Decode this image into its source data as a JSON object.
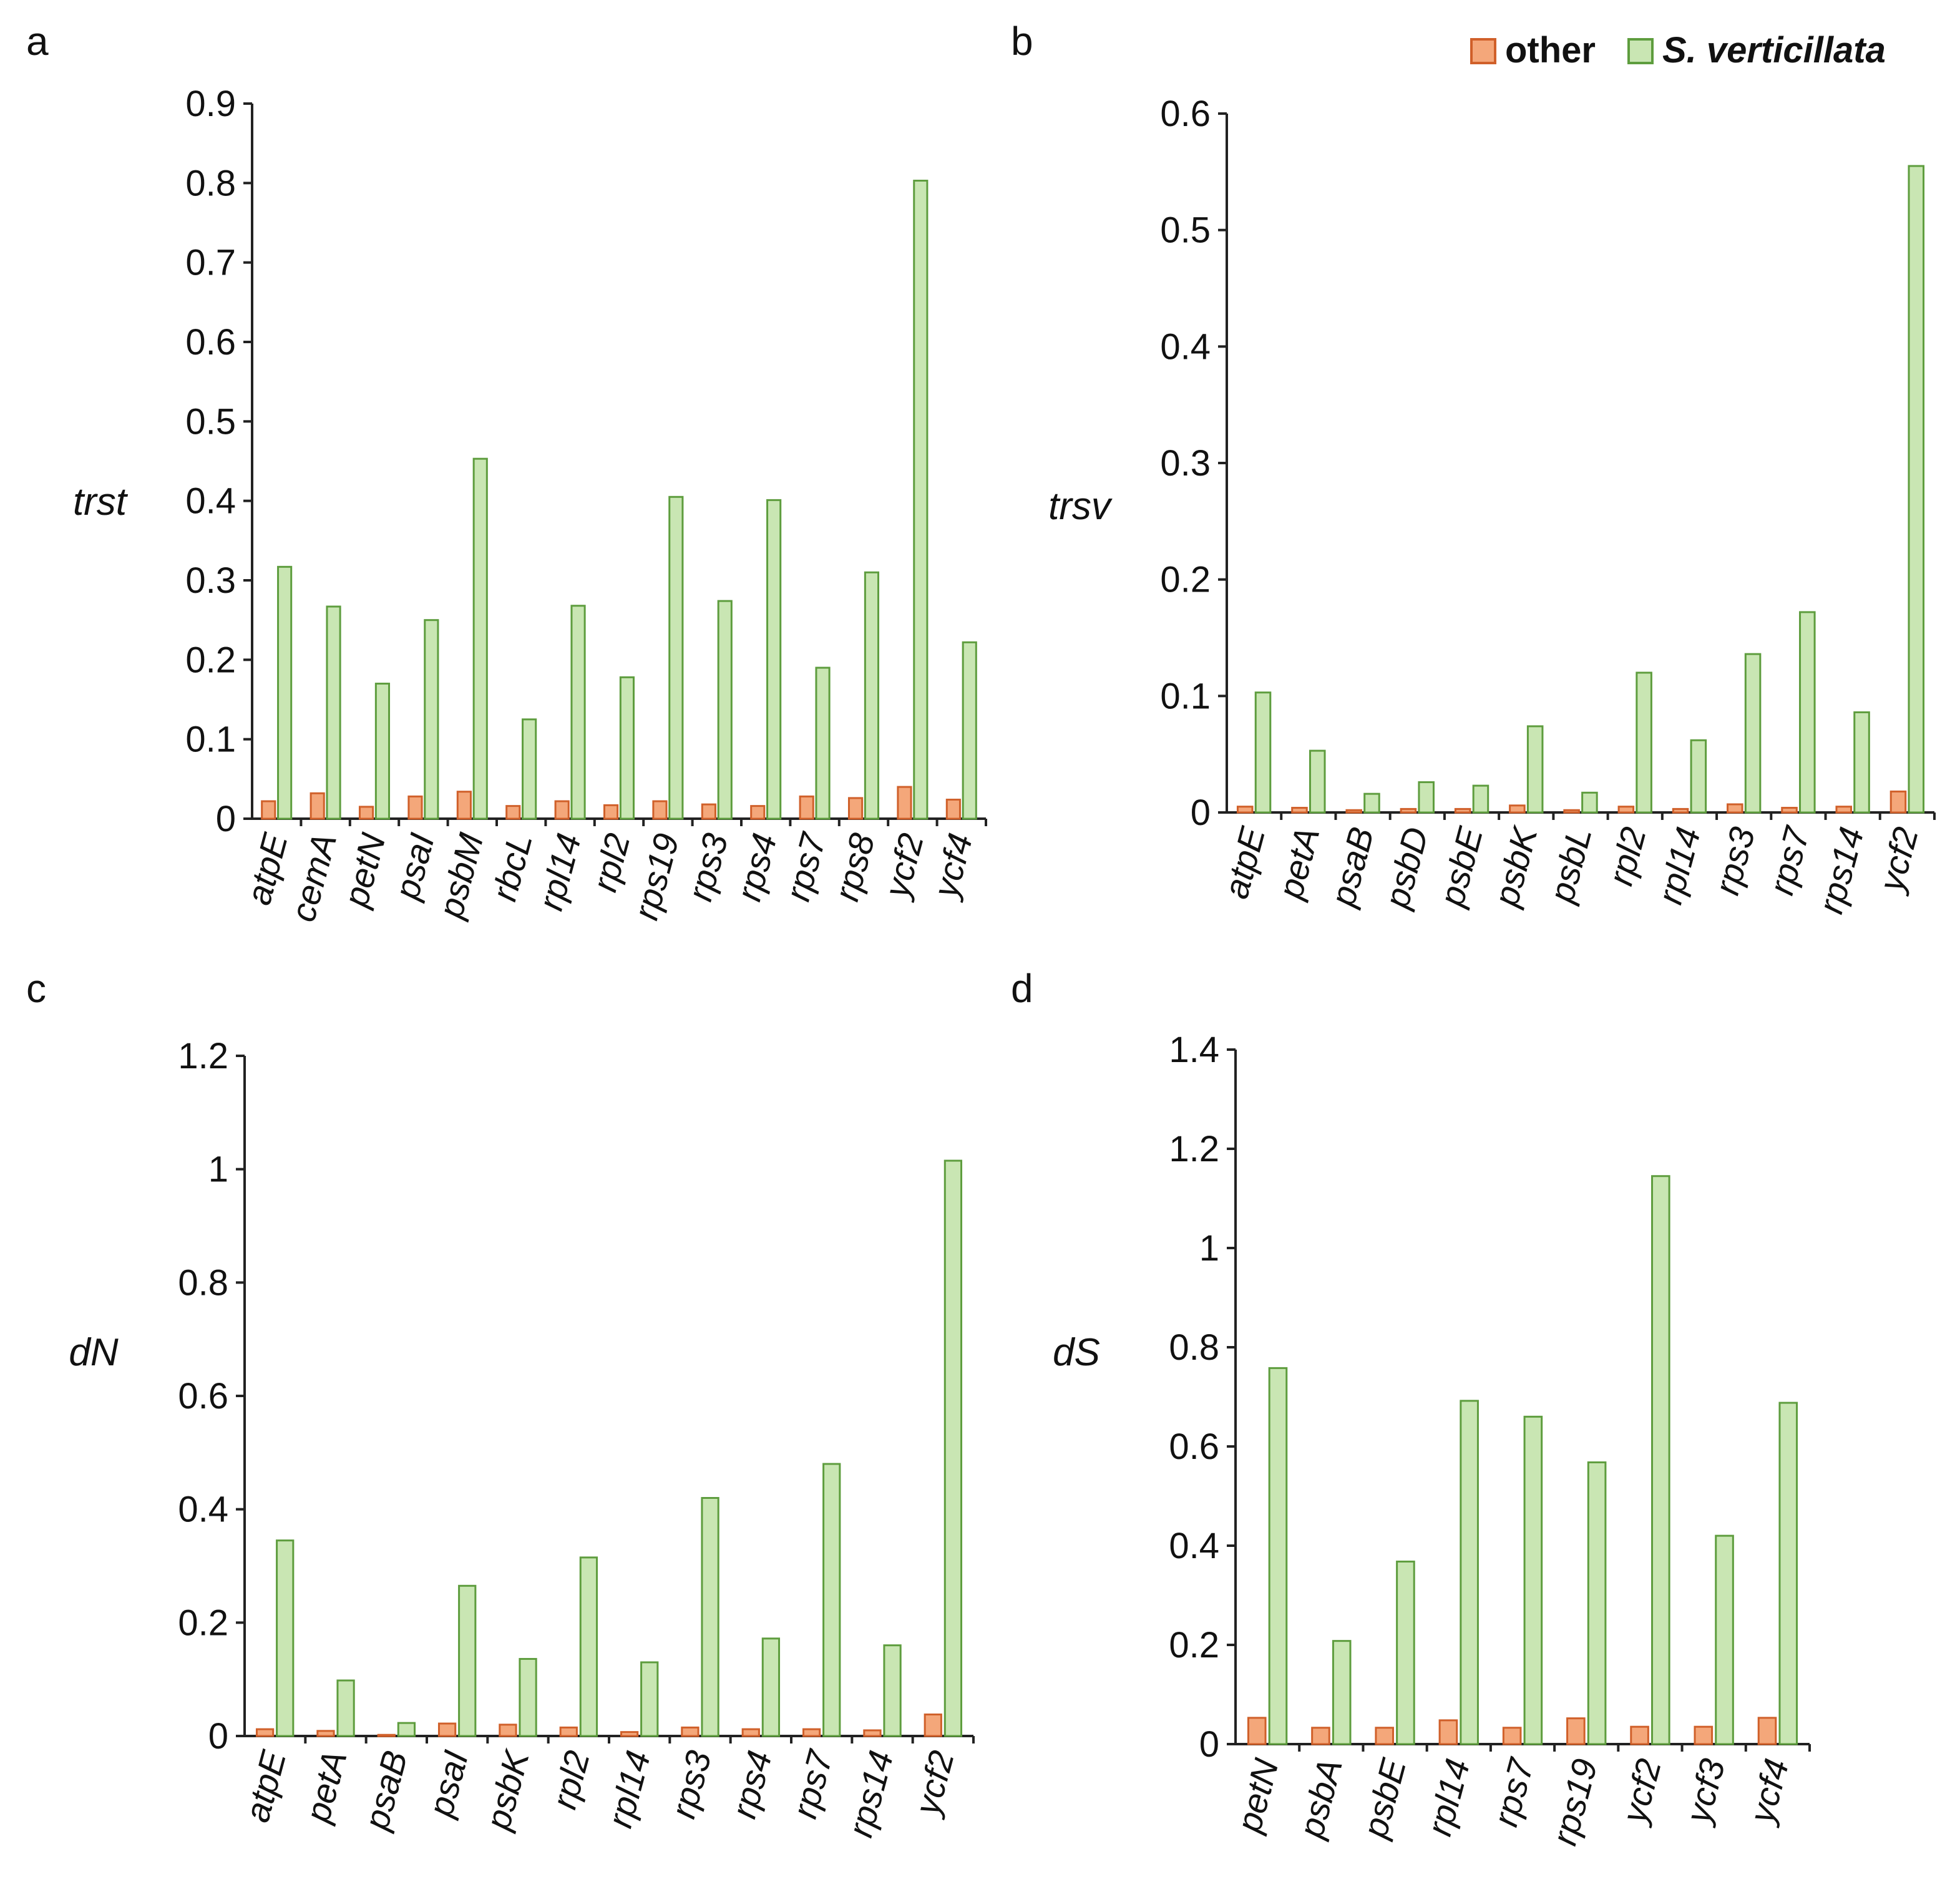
{
  "colors": {
    "other_fill": "#F4A77A",
    "other_stroke": "#D0602A",
    "sv_fill": "#C9E6B3",
    "sv_stroke": "#5E9D3E"
  },
  "legend": {
    "items": [
      {
        "label": "other",
        "italic": false
      },
      {
        "label": "S. verticillata",
        "italic": true
      }
    ]
  },
  "chart_data": [
    {
      "panel": "a",
      "type": "bar",
      "ylabel": "trst",
      "ylim": [
        0,
        0.9
      ],
      "yticks": [
        "0",
        "0.1",
        "0.2",
        "0.3",
        "0.4",
        "0.5",
        "0.6",
        "0.7",
        "0.8",
        "0.9"
      ],
      "categories": [
        "atpE",
        "cemA",
        "petN",
        "psaI",
        "psbM",
        "rbcL",
        "rpl14",
        "rpl2",
        "rps19",
        "rps3",
        "rps4",
        "rps7",
        "rps8",
        "ycf2",
        "ycf4"
      ],
      "series": [
        {
          "name": "other",
          "values": [
            0.022,
            0.032,
            0.015,
            0.028,
            0.034,
            0.016,
            0.022,
            0.017,
            0.022,
            0.018,
            0.016,
            0.028,
            0.026,
            0.04,
            0.024
          ]
        },
        {
          "name": "S. verticillata",
          "values": [
            0.317,
            0.267,
            0.17,
            0.25,
            0.453,
            0.125,
            0.268,
            0.178,
            0.405,
            0.274,
            0.401,
            0.19,
            0.31,
            0.803,
            0.222
          ]
        }
      ]
    },
    {
      "panel": "b",
      "type": "bar",
      "ylabel": "trsv",
      "ylim": [
        0,
        0.6
      ],
      "yticks": [
        "0",
        "0.1",
        "0.2",
        "0.3",
        "0.4",
        "0.5",
        "0.6"
      ],
      "categories": [
        "atpE",
        "petA",
        "psaB",
        "psbD",
        "psbE",
        "psbK",
        "psbL",
        "rpl2",
        "rpl14",
        "rps3",
        "rps7",
        "rps14",
        "ycf2"
      ],
      "series": [
        {
          "name": "other",
          "values": [
            0.005,
            0.004,
            0.002,
            0.003,
            0.003,
            0.006,
            0.002,
            0.005,
            0.003,
            0.007,
            0.004,
            0.005,
            0.018
          ]
        },
        {
          "name": "S. verticillata",
          "values": [
            0.103,
            0.053,
            0.016,
            0.026,
            0.023,
            0.074,
            0.017,
            0.12,
            0.062,
            0.136,
            0.172,
            0.086,
            0.555
          ]
        }
      ]
    },
    {
      "panel": "c",
      "type": "bar",
      "ylabel": "dN",
      "ylim": [
        0,
        1.2
      ],
      "yticks": [
        "0",
        "0.2",
        "0.4",
        "0.6",
        "0.8",
        "1",
        "1.2"
      ],
      "categories": [
        "atpE",
        "petA",
        "psaB",
        "psaI",
        "psbK",
        "rpl2",
        "rpl14",
        "rps3",
        "rps4",
        "rps7",
        "rps14",
        "ycf2"
      ],
      "series": [
        {
          "name": "other",
          "values": [
            0.012,
            0.009,
            0.002,
            0.022,
            0.02,
            0.015,
            0.007,
            0.015,
            0.012,
            0.012,
            0.01,
            0.038
          ]
        },
        {
          "name": "S. verticillata",
          "values": [
            0.345,
            0.098,
            0.023,
            0.265,
            0.136,
            0.315,
            0.13,
            0.42,
            0.172,
            0.48,
            0.16,
            1.015
          ]
        }
      ]
    },
    {
      "panel": "d",
      "type": "bar",
      "ylabel": "dS",
      "ylim": [
        0,
        1.4
      ],
      "yticks": [
        "0",
        "0.2",
        "0.4",
        "0.6",
        "0.8",
        "1",
        "1.2",
        "1.4"
      ],
      "categories": [
        "petN",
        "psbA",
        "psbE",
        "rpl14",
        "rps7",
        "rps19",
        "ycf2",
        "ycf3",
        "ycf4"
      ],
      "series": [
        {
          "name": "other",
          "values": [
            0.053,
            0.033,
            0.033,
            0.048,
            0.033,
            0.052,
            0.035,
            0.035,
            0.053
          ]
        },
        {
          "name": "S. verticillata",
          "values": [
            0.758,
            0.208,
            0.368,
            0.692,
            0.66,
            0.568,
            1.145,
            0.42,
            0.688
          ]
        }
      ]
    }
  ]
}
